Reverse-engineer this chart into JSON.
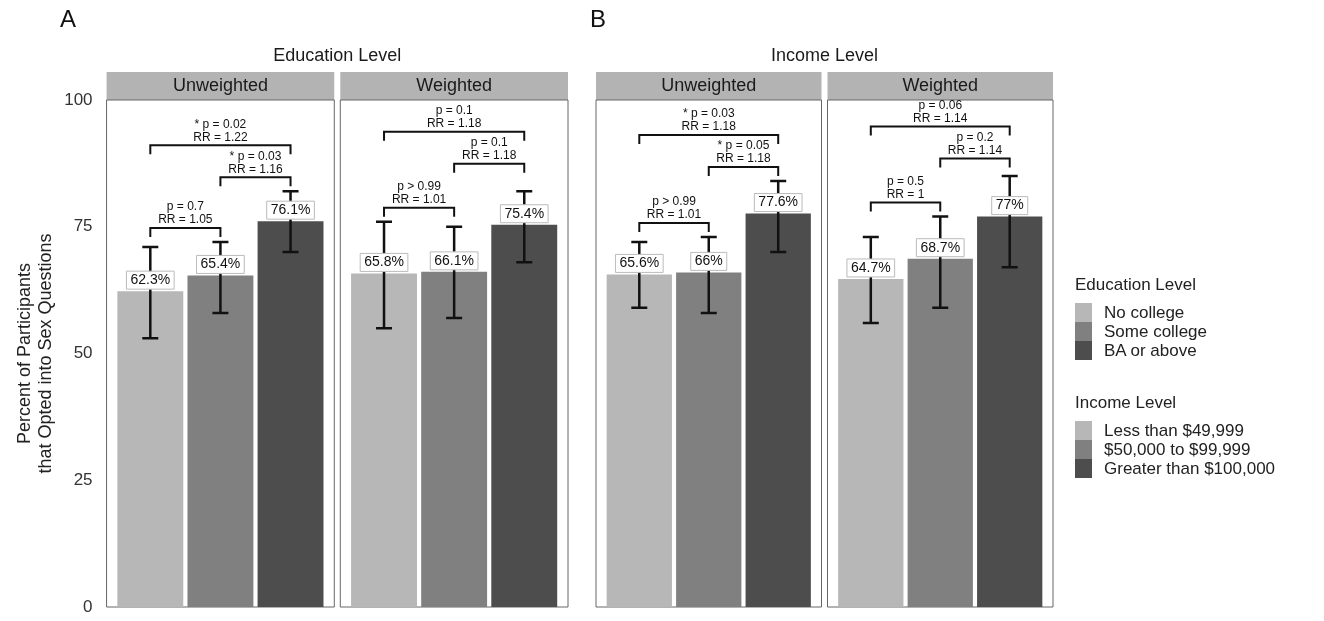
{
  "chart_data": [
    {
      "type": "bar",
      "title": "Education Level",
      "ylabel": "Percent of Participants\nthat Opted into Sex Questions",
      "categories": [
        "Unweighted",
        "Weighted"
      ],
      "series": [
        {
          "name": "No college",
          "color": "#b7b7b7",
          "values": [
            62.3,
            65.8
          ],
          "errors": [
            [
              53,
              71
            ],
            [
              55,
              76
            ]
          ],
          "value_labels": [
            "62.3%",
            "65.8%"
          ]
        },
        {
          "name": "Some college",
          "color": "#808080",
          "values": [
            65.4,
            66.1
          ],
          "errors": [
            [
              58,
              72
            ],
            [
              57,
              75
            ]
          ],
          "value_labels": [
            "65.4%",
            "66.1%"
          ]
        },
        {
          "name": "BA or above",
          "color": "#4d4d4d",
          "values": [
            76.1,
            75.4
          ],
          "errors": [
            [
              70,
              82
            ],
            [
              68,
              82
            ]
          ],
          "value_labels": [
            "76.1%",
            "75.4%"
          ]
        }
      ],
      "ylim": [
        0,
        100
      ],
      "yticks": [
        0,
        25,
        50,
        75,
        100
      ],
      "legend": "right",
      "legend_title": "Education Level",
      "annotations": [
        "A",
        "p = 0.7\nRR = 1.05",
        "* p = 0.03\nRR = 1.16",
        "* p = 0.02\nRR = 1.22",
        "p > 0.99\nRR = 1.01",
        "p = 0.1\nRR = 1.18",
        "p = 0.1\nRR = 1.18"
      ]
    },
    {
      "type": "bar",
      "title": "Income Level",
      "categories": [
        "Unweighted",
        "Weighted"
      ],
      "series": [
        {
          "name": "Less than $49,999",
          "color": "#b7b7b7",
          "values": [
            65.6,
            64.7
          ],
          "errors": [
            [
              59,
              72
            ],
            [
              56,
              73
            ]
          ],
          "value_labels": [
            "65.6%",
            "64.7%"
          ]
        },
        {
          "name": "$50,000 to $99,999",
          "color": "#808080",
          "values": [
            66,
            68.7
          ],
          "errors": [
            [
              58,
              73
            ],
            [
              59,
              77
            ]
          ],
          "value_labels": [
            "66%",
            "68.7%"
          ]
        },
        {
          "name": "Greater than $100,000",
          "color": "#4d4d4d",
          "values": [
            77.6,
            77
          ],
          "errors": [
            [
              70,
              84
            ],
            [
              67,
              85
            ]
          ],
          "value_labels": [
            "77.6%",
            "77%"
          ]
        }
      ],
      "ylim": [
        0,
        100
      ],
      "yticks": [
        0,
        25,
        50,
        75,
        100
      ],
      "tick_labels": "x",
      "legend": "right",
      "legend_title": "Income Level",
      "annotations": [
        "B",
        "p > 0.99\nRR = 1.01",
        "* p = 0.05\nRR = 1.18",
        "* p = 0.03\nRR = 1.18",
        "p = 0.5\nRR = 1",
        "p = 0.2\nRR = 1.14",
        "p = 0.06\nRR = 1.14"
      ]
    }
  ]
}
